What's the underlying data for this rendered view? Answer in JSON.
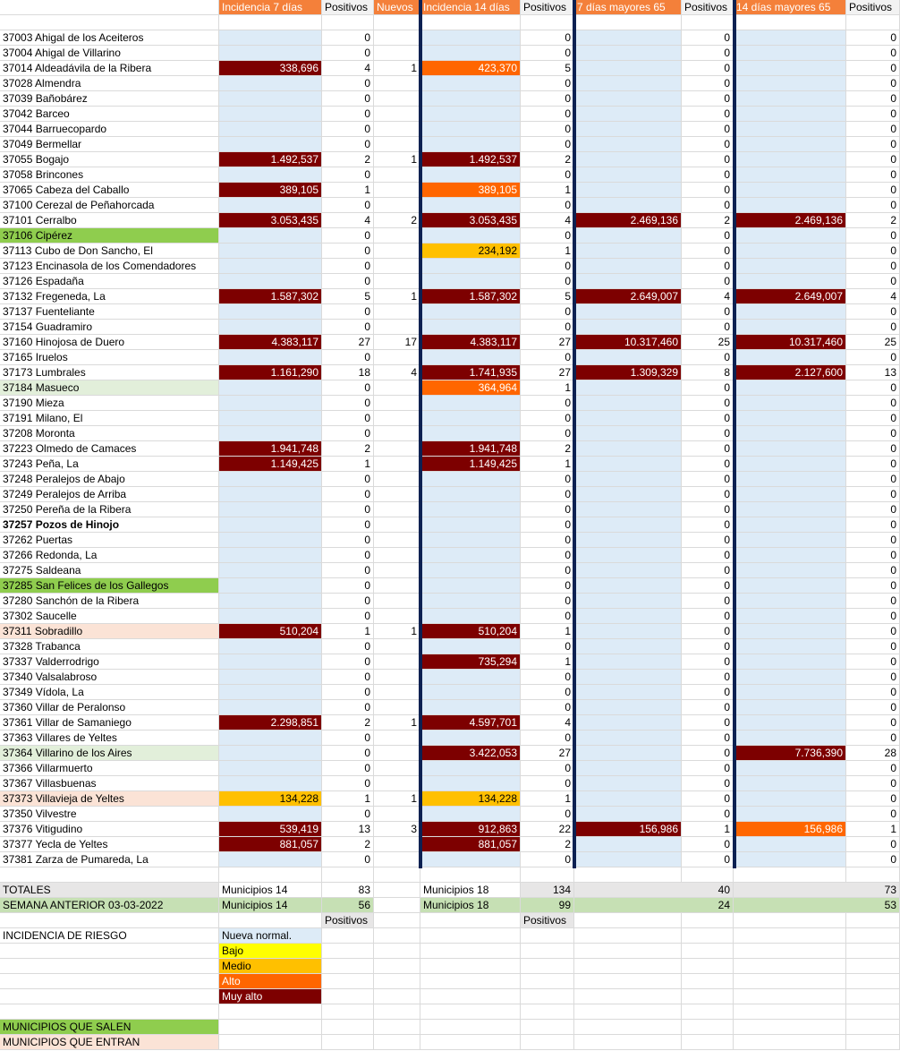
{
  "colors": {
    "header_orange": "#f4803a",
    "nn_blue": "#ddebf7",
    "bajo": "#ffff00",
    "medio": "#ffc000",
    "alto": "#ff6600",
    "muy_alto": "#7d0000",
    "sale_green": "#8fcd4e",
    "entra_salmon": "#fbe3d6",
    "masueco_green": "#e2efda",
    "totals_gray": "#e7e6e6",
    "anterior_green": "#c6e0b4",
    "divider_navy": "#0d2152"
  },
  "headers": {
    "inc7": "Incidencia 7 días",
    "pos1": "Positivos",
    "nuevos": "Nuevos",
    "inc14": "Incidencia 14 días",
    "pos2": "Positivos",
    "may7": "7 días mayores 65",
    "pos3": "Positivos",
    "may14": "14 días mayores 65",
    "pos4": "Positivos"
  },
  "rows": [
    {
      "name": "37003 Ahigal de los Aceiteros",
      "i7": "",
      "p7": "0",
      "nv": "",
      "i14": "",
      "p14": "0",
      "m7": "",
      "pm7": "0",
      "m14": "",
      "pm14": "0",
      "c7": "nn",
      "c14": "nn",
      "cm7": "nn",
      "cm14": "nn",
      "nc": ""
    },
    {
      "name": "37004 Ahigal de Villarino",
      "i7": "",
      "p7": "0",
      "nv": "",
      "i14": "",
      "p14": "0",
      "m7": "",
      "pm7": "0",
      "m14": "",
      "pm14": "0",
      "c7": "nn",
      "c14": "nn",
      "cm7": "nn",
      "cm14": "nn",
      "nc": ""
    },
    {
      "name": "37014 Aldeadávila de la Ribera",
      "i7": "338,696",
      "p7": "4",
      "nv": "1",
      "i14": "423,370",
      "p14": "5",
      "m7": "",
      "pm7": "0",
      "m14": "",
      "pm14": "0",
      "c7": "ma",
      "c14": "al",
      "cm7": "nn",
      "cm14": "nn",
      "nc": ""
    },
    {
      "name": "37028 Almendra",
      "i7": "",
      "p7": "0",
      "nv": "",
      "i14": "",
      "p14": "0",
      "m7": "",
      "pm7": "0",
      "m14": "",
      "pm14": "0",
      "c7": "nn",
      "c14": "nn",
      "cm7": "nn",
      "cm14": "nn",
      "nc": ""
    },
    {
      "name": "37039 Bañobárez",
      "i7": "",
      "p7": "0",
      "nv": "",
      "i14": "",
      "p14": "0",
      "m7": "",
      "pm7": "0",
      "m14": "",
      "pm14": "0",
      "c7": "nn",
      "c14": "nn",
      "cm7": "nn",
      "cm14": "nn",
      "nc": ""
    },
    {
      "name": "37042 Barceo",
      "i7": "",
      "p7": "0",
      "nv": "",
      "i14": "",
      "p14": "0",
      "m7": "",
      "pm7": "0",
      "m14": "",
      "pm14": "0",
      "c7": "nn",
      "c14": "nn",
      "cm7": "nn",
      "cm14": "nn",
      "nc": ""
    },
    {
      "name": "37044 Barruecopardo",
      "i7": "",
      "p7": "0",
      "nv": "",
      "i14": "",
      "p14": "0",
      "m7": "",
      "pm7": "0",
      "m14": "",
      "pm14": "0",
      "c7": "nn",
      "c14": "nn",
      "cm7": "nn",
      "cm14": "nn",
      "nc": ""
    },
    {
      "name": "37049 Bermellar",
      "i7": "",
      "p7": "0",
      "nv": "",
      "i14": "",
      "p14": "0",
      "m7": "",
      "pm7": "0",
      "m14": "",
      "pm14": "0",
      "c7": "nn",
      "c14": "nn",
      "cm7": "nn",
      "cm14": "nn",
      "nc": ""
    },
    {
      "name": "37055 Bogajo",
      "i7": "1.492,537",
      "p7": "2",
      "nv": "1",
      "i14": "1.492,537",
      "p14": "2",
      "m7": "",
      "pm7": "0",
      "m14": "",
      "pm14": "0",
      "c7": "ma",
      "c14": "ma",
      "cm7": "nn",
      "cm14": "nn",
      "nc": ""
    },
    {
      "name": "37058 Brincones",
      "i7": "",
      "p7": "0",
      "nv": "",
      "i14": "",
      "p14": "0",
      "m7": "",
      "pm7": "0",
      "m14": "",
      "pm14": "0",
      "c7": "nn",
      "c14": "nn",
      "cm7": "nn",
      "cm14": "nn",
      "nc": ""
    },
    {
      "name": "37065 Cabeza del Caballo",
      "i7": "389,105",
      "p7": "1",
      "nv": "",
      "i14": "389,105",
      "p14": "1",
      "m7": "",
      "pm7": "0",
      "m14": "",
      "pm14": "0",
      "c7": "ma",
      "c14": "al",
      "cm7": "nn",
      "cm14": "nn",
      "nc": ""
    },
    {
      "name": "37100 Cerezal de Peñahorcada",
      "i7": "",
      "p7": "0",
      "nv": "",
      "i14": "",
      "p14": "0",
      "m7": "",
      "pm7": "0",
      "m14": "",
      "pm14": "0",
      "c7": "nn",
      "c14": "nn",
      "cm7": "nn",
      "cm14": "nn",
      "nc": ""
    },
    {
      "name": "37101 Cerralbo",
      "i7": "3.053,435",
      "p7": "4",
      "nv": "2",
      "i14": "3.053,435",
      "p14": "4",
      "m7": "2.469,136",
      "pm7": "2",
      "m14": "2.469,136",
      "pm14": "2",
      "c7": "ma",
      "c14": "ma",
      "cm7": "ma",
      "cm14": "ma",
      "nc": ""
    },
    {
      "name": "37106 Cipérez",
      "i7": "",
      "p7": "0",
      "nv": "",
      "i14": "",
      "p14": "0",
      "m7": "",
      "pm7": "0",
      "m14": "",
      "pm14": "0",
      "c7": "nn",
      "c14": "nn",
      "cm7": "nn",
      "cm14": "nn",
      "nc": "sale"
    },
    {
      "name": "37113 Cubo de Don Sancho, El",
      "i7": "",
      "p7": "0",
      "nv": "",
      "i14": "234,192",
      "p14": "1",
      "m7": "",
      "pm7": "0",
      "m14": "",
      "pm14": "0",
      "c7": "nn",
      "c14": "me",
      "cm7": "nn",
      "cm14": "nn",
      "nc": ""
    },
    {
      "name": "37123 Encinasola de los Comendadores",
      "i7": "",
      "p7": "0",
      "nv": "",
      "i14": "",
      "p14": "0",
      "m7": "",
      "pm7": "0",
      "m14": "",
      "pm14": "0",
      "c7": "nn",
      "c14": "nn",
      "cm7": "nn",
      "cm14": "nn",
      "nc": ""
    },
    {
      "name": "37126 Espadaña",
      "i7": "",
      "p7": "0",
      "nv": "",
      "i14": "",
      "p14": "0",
      "m7": "",
      "pm7": "0",
      "m14": "",
      "pm14": "0",
      "c7": "nn",
      "c14": "nn",
      "cm7": "nn",
      "cm14": "nn",
      "nc": ""
    },
    {
      "name": "37132 Fregeneda, La",
      "i7": "1.587,302",
      "p7": "5",
      "nv": "1",
      "i14": "1.587,302",
      "p14": "5",
      "m7": "2.649,007",
      "pm7": "4",
      "m14": "2.649,007",
      "pm14": "4",
      "c7": "ma",
      "c14": "ma",
      "cm7": "ma",
      "cm14": "ma",
      "nc": ""
    },
    {
      "name": "37137 Fuenteliante",
      "i7": "",
      "p7": "0",
      "nv": "",
      "i14": "",
      "p14": "0",
      "m7": "",
      "pm7": "0",
      "m14": "",
      "pm14": "0",
      "c7": "nn",
      "c14": "nn",
      "cm7": "nn",
      "cm14": "nn",
      "nc": ""
    },
    {
      "name": "37154 Guadramiro",
      "i7": "",
      "p7": "0",
      "nv": "",
      "i14": "",
      "p14": "0",
      "m7": "",
      "pm7": "0",
      "m14": "",
      "pm14": "0",
      "c7": "nn",
      "c14": "nn",
      "cm7": "nn",
      "cm14": "nn",
      "nc": ""
    },
    {
      "name": "37160 Hinojosa de Duero",
      "i7": "4.383,117",
      "p7": "27",
      "nv": "17",
      "i14": "4.383,117",
      "p14": "27",
      "m7": "10.317,460",
      "pm7": "25",
      "m14": "10.317,460",
      "pm14": "25",
      "c7": "ma",
      "c14": "ma",
      "cm7": "ma",
      "cm14": "ma",
      "nc": ""
    },
    {
      "name": "37165 Iruelos",
      "i7": "",
      "p7": "0",
      "nv": "",
      "i14": "",
      "p14": "0",
      "m7": "",
      "pm7": "0",
      "m14": "",
      "pm14": "0",
      "c7": "nn",
      "c14": "nn",
      "cm7": "nn",
      "cm14": "nn",
      "nc": ""
    },
    {
      "name": "37173 Lumbrales",
      "i7": "1.161,290",
      "p7": "18",
      "nv": "4",
      "i14": "1.741,935",
      "p14": "27",
      "m7": "1.309,329",
      "pm7": "8",
      "m14": "2.127,600",
      "pm14": "13",
      "c7": "ma",
      "c14": "ma",
      "cm7": "ma",
      "cm14": "ma",
      "nc": ""
    },
    {
      "name": "37184 Masueco",
      "i7": "",
      "p7": "0",
      "nv": "",
      "i14": "364,964",
      "p14": "1",
      "m7": "",
      "pm7": "0",
      "m14": "",
      "pm14": "0",
      "c7": "nn",
      "c14": "al",
      "cm7": "nn",
      "cm14": "nn",
      "nc": "lg"
    },
    {
      "name": "37190 Mieza",
      "i7": "",
      "p7": "0",
      "nv": "",
      "i14": "",
      "p14": "0",
      "m7": "",
      "pm7": "0",
      "m14": "",
      "pm14": "0",
      "c7": "nn",
      "c14": "nn",
      "cm7": "nn",
      "cm14": "nn",
      "nc": ""
    },
    {
      "name": "37191 Milano, El",
      "i7": "",
      "p7": "0",
      "nv": "",
      "i14": "",
      "p14": "0",
      "m7": "",
      "pm7": "0",
      "m14": "",
      "pm14": "0",
      "c7": "nn",
      "c14": "nn",
      "cm7": "nn",
      "cm14": "nn",
      "nc": ""
    },
    {
      "name": "37208 Moronta",
      "i7": "",
      "p7": "0",
      "nv": "",
      "i14": "",
      "p14": "0",
      "m7": "",
      "pm7": "0",
      "m14": "",
      "pm14": "0",
      "c7": "nn",
      "c14": "nn",
      "cm7": "nn",
      "cm14": "nn",
      "nc": ""
    },
    {
      "name": "37223 Olmedo de Camaces",
      "i7": "1.941,748",
      "p7": "2",
      "nv": "",
      "i14": "1.941,748",
      "p14": "2",
      "m7": "",
      "pm7": "0",
      "m14": "",
      "pm14": "0",
      "c7": "ma",
      "c14": "ma",
      "cm7": "nn",
      "cm14": "nn",
      "nc": ""
    },
    {
      "name": "37243 Peña, La",
      "i7": "1.149,425",
      "p7": "1",
      "nv": "",
      "i14": "1.149,425",
      "p14": "1",
      "m7": "",
      "pm7": "0",
      "m14": "",
      "pm14": "0",
      "c7": "ma",
      "c14": "ma",
      "cm7": "nn",
      "cm14": "nn",
      "nc": ""
    },
    {
      "name": "37248 Peralejos de Abajo",
      "i7": "",
      "p7": "0",
      "nv": "",
      "i14": "",
      "p14": "0",
      "m7": "",
      "pm7": "0",
      "m14": "",
      "pm14": "0",
      "c7": "nn",
      "c14": "nn",
      "cm7": "nn",
      "cm14": "nn",
      "nc": ""
    },
    {
      "name": "37249 Peralejos de Arriba",
      "i7": "",
      "p7": "0",
      "nv": "",
      "i14": "",
      "p14": "0",
      "m7": "",
      "pm7": "0",
      "m14": "",
      "pm14": "0",
      "c7": "nn",
      "c14": "nn",
      "cm7": "nn",
      "cm14": "nn",
      "nc": ""
    },
    {
      "name": "37250 Pereña de la Ribera",
      "i7": "",
      "p7": "0",
      "nv": "",
      "i14": "",
      "p14": "0",
      "m7": "",
      "pm7": "0",
      "m14": "",
      "pm14": "0",
      "c7": "nn",
      "c14": "nn",
      "cm7": "nn",
      "cm14": "nn",
      "nc": ""
    },
    {
      "name": "37257 Pozos de Hinojo",
      "i7": "",
      "p7": "0",
      "nv": "",
      "i14": "",
      "p14": "0",
      "m7": "",
      "pm7": "0",
      "m14": "",
      "pm14": "0",
      "c7": "nn",
      "c14": "nn",
      "cm7": "nn",
      "cm14": "nn",
      "nc": ""
    },
    {
      "name": "37262 Puertas",
      "i7": "",
      "p7": "0",
      "nv": "",
      "i14": "",
      "p14": "0",
      "m7": "",
      "pm7": "0",
      "m14": "",
      "pm14": "0",
      "c7": "nn",
      "c14": "nn",
      "cm7": "nn",
      "cm14": "nn",
      "nc": ""
    },
    {
      "name": "37266 Redonda, La",
      "i7": "",
      "p7": "0",
      "nv": "",
      "i14": "",
      "p14": "0",
      "m7": "",
      "pm7": "0",
      "m14": "",
      "pm14": "0",
      "c7": "nn",
      "c14": "nn",
      "cm7": "nn",
      "cm14": "nn",
      "nc": ""
    },
    {
      "name": "37275 Saldeana",
      "i7": "",
      "p7": "0",
      "nv": "",
      "i14": "",
      "p14": "0",
      "m7": "",
      "pm7": "0",
      "m14": "",
      "pm14": "0",
      "c7": "nn",
      "c14": "nn",
      "cm7": "nn",
      "cm14": "nn",
      "nc": ""
    },
    {
      "name": "37285 San Felices de los Gallegos",
      "i7": "",
      "p7": "0",
      "nv": "",
      "i14": "",
      "p14": "0",
      "m7": "",
      "pm7": "0",
      "m14": "",
      "pm14": "0",
      "c7": "nn",
      "c14": "nn",
      "cm7": "nn",
      "cm14": "nn",
      "nc": "sale"
    },
    {
      "name": "37280 Sanchón de la Ribera",
      "i7": "",
      "p7": "0",
      "nv": "",
      "i14": "",
      "p14": "0",
      "m7": "",
      "pm7": "0",
      "m14": "",
      "pm14": "0",
      "c7": "nn",
      "c14": "nn",
      "cm7": "nn",
      "cm14": "nn",
      "nc": ""
    },
    {
      "name": "37302 Saucelle",
      "i7": "",
      "p7": "0",
      "nv": "",
      "i14": "",
      "p14": "0",
      "m7": "",
      "pm7": "0",
      "m14": "",
      "pm14": "0",
      "c7": "nn",
      "c14": "nn",
      "cm7": "nn",
      "cm14": "nn",
      "nc": ""
    },
    {
      "name": "37311 Sobradillo",
      "i7": "510,204",
      "p7": "1",
      "nv": "1",
      "i14": "510,204",
      "p14": "1",
      "m7": "",
      "pm7": "0",
      "m14": "",
      "pm14": "0",
      "c7": "ma",
      "c14": "ma",
      "cm7": "nn",
      "cm14": "nn",
      "nc": "entra"
    },
    {
      "name": "37328 Trabanca",
      "i7": "",
      "p7": "0",
      "nv": "",
      "i14": "",
      "p14": "0",
      "m7": "",
      "pm7": "0",
      "m14": "",
      "pm14": "0",
      "c7": "nn",
      "c14": "nn",
      "cm7": "nn",
      "cm14": "nn",
      "nc": ""
    },
    {
      "name": "37337 Valderrodrigo",
      "i7": "",
      "p7": "0",
      "nv": "",
      "i14": "735,294",
      "p14": "1",
      "m7": "",
      "pm7": "0",
      "m14": "",
      "pm14": "0",
      "c7": "nn",
      "c14": "ma",
      "cm7": "nn",
      "cm14": "nn",
      "nc": ""
    },
    {
      "name": "37340 Valsalabroso",
      "i7": "",
      "p7": "0",
      "nv": "",
      "i14": "",
      "p14": "0",
      "m7": "",
      "pm7": "0",
      "m14": "",
      "pm14": "0",
      "c7": "nn",
      "c14": "nn",
      "cm7": "nn",
      "cm14": "nn",
      "nc": ""
    },
    {
      "name": "37349 Vídola, La",
      "i7": "",
      "p7": "0",
      "nv": "",
      "i14": "",
      "p14": "0",
      "m7": "",
      "pm7": "0",
      "m14": "",
      "pm14": "0",
      "c7": "nn",
      "c14": "nn",
      "cm7": "nn",
      "cm14": "nn",
      "nc": ""
    },
    {
      "name": "37360 Villar de Peralonso",
      "i7": "",
      "p7": "0",
      "nv": "",
      "i14": "",
      "p14": "0",
      "m7": "",
      "pm7": "0",
      "m14": "",
      "pm14": "0",
      "c7": "nn",
      "c14": "nn",
      "cm7": "nn",
      "cm14": "nn",
      "nc": ""
    },
    {
      "name": "37361 Villar de Samaniego",
      "i7": "2.298,851",
      "p7": "2",
      "nv": "1",
      "i14": "4.597,701",
      "p14": "4",
      "m7": "",
      "pm7": "0",
      "m14": "",
      "pm14": "0",
      "c7": "ma",
      "c14": "ma",
      "cm7": "nn",
      "cm14": "nn",
      "nc": ""
    },
    {
      "name": "37363 Villares de Yeltes",
      "i7": "",
      "p7": "0",
      "nv": "",
      "i14": "",
      "p14": "0",
      "m7": "",
      "pm7": "0",
      "m14": "",
      "pm14": "0",
      "c7": "nn",
      "c14": "nn",
      "cm7": "nn",
      "cm14": "nn",
      "nc": ""
    },
    {
      "name": "37364 Villarino de los Aires",
      "i7": "",
      "p7": "0",
      "nv": "",
      "i14": "3.422,053",
      "p14": "27",
      "m7": "",
      "pm7": "0",
      "m14": "7.736,390",
      "pm14": "28",
      "c7": "nn",
      "c14": "ma",
      "cm7": "nn",
      "cm14": "ma",
      "nc": "lg"
    },
    {
      "name": "37366 Villarmuerto",
      "i7": "",
      "p7": "0",
      "nv": "",
      "i14": "",
      "p14": "0",
      "m7": "",
      "pm7": "0",
      "m14": "",
      "pm14": "0",
      "c7": "nn",
      "c14": "nn",
      "cm7": "nn",
      "cm14": "nn",
      "nc": ""
    },
    {
      "name": "37367 Villasbuenas",
      "i7": "",
      "p7": "0",
      "nv": "",
      "i14": "",
      "p14": "0",
      "m7": "",
      "pm7": "0",
      "m14": "",
      "pm14": "0",
      "c7": "nn",
      "c14": "nn",
      "cm7": "nn",
      "cm14": "nn",
      "nc": ""
    },
    {
      "name": "37373 Villavieja de Yeltes",
      "i7": "134,228",
      "p7": "1",
      "nv": "1",
      "i14": "134,228",
      "p14": "1",
      "m7": "",
      "pm7": "0",
      "m14": "",
      "pm14": "0",
      "c7": "me",
      "c14": "me",
      "cm7": "nn",
      "cm14": "nn",
      "nc": "entra"
    },
    {
      "name": "37350 Vilvestre",
      "i7": "",
      "p7": "0",
      "nv": "",
      "i14": "",
      "p14": "0",
      "m7": "",
      "pm7": "0",
      "m14": "",
      "pm14": "0",
      "c7": "nn",
      "c14": "nn",
      "cm7": "nn",
      "cm14": "nn",
      "nc": ""
    },
    {
      "name": "37376 Vitigudino",
      "i7": "539,419",
      "p7": "13",
      "nv": "3",
      "i14": "912,863",
      "p14": "22",
      "m7": "156,986",
      "pm7": "1",
      "m14": "156,986",
      "pm14": "1",
      "c7": "ma",
      "c14": "ma",
      "cm7": "ma",
      "cm14": "al",
      "nc": ""
    },
    {
      "name": "37377 Yecla de Yeltes",
      "i7": "881,057",
      "p7": "2",
      "nv": "",
      "i14": "881,057",
      "p14": "2",
      "m7": "",
      "pm7": "0",
      "m14": "",
      "pm14": "0",
      "c7": "ma",
      "c14": "ma",
      "cm7": "nn",
      "cm14": "nn",
      "nc": ""
    },
    {
      "name": "37381 Zarza de Pumareda, La",
      "i7": "",
      "p7": "0",
      "nv": "",
      "i14": "",
      "p14": "0",
      "m7": "",
      "pm7": "0",
      "m14": "",
      "pm14": "0",
      "c7": "nn",
      "c14": "nn",
      "cm7": "nn",
      "cm14": "nn",
      "nc": ""
    }
  ],
  "totals": {
    "label": "TOTALES",
    "mun7": "Municipios 14",
    "pos7": "83",
    "mun14": "Municipios 18",
    "pos14": "134",
    "may7": "40",
    "may14": "73"
  },
  "previous": {
    "label": "SEMANA ANTERIOR 03-03-2022",
    "mun7": "Municipios 14",
    "pos7": "56",
    "mun14": "Municipios 18",
    "pos14": "99",
    "may7": "24",
    "may14": "53"
  },
  "positivos_labels": {
    "a": "Positivos",
    "b": "Positivos"
  },
  "legend": {
    "title": "INCIDENCIA DE RIESGO",
    "nueva_normal": "Nueva normal.",
    "bajo": "Bajo",
    "medio": "Medio",
    "alto": "Alto",
    "muy_alto": "Muy alto"
  },
  "municipios_salen": "MUNICIPIOS QUE SALEN",
  "municipios_entran": "MUNICIPIOS QUE ENTRAN"
}
